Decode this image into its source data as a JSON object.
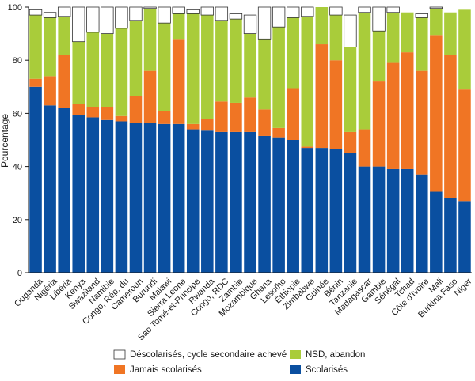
{
  "chart_data": {
    "type": "bar",
    "stacked": true,
    "ylabel": "Pourcentage",
    "ylim": [
      0,
      100
    ],
    "yticks": [
      0,
      20,
      40,
      60,
      80,
      100
    ],
    "legend_position": "bottom",
    "categories": [
      "Ouganda",
      "Nigéria",
      "Libéria",
      "Kenya",
      "Swaziland",
      "Namibie",
      "Congo, Rép. du",
      "Cameroun",
      "Burundi",
      "Malawi",
      "Sierra Leone",
      "Sao Tomé-et-Principe",
      "Rwanda",
      "Congo, RDC",
      "Zambie",
      "Mozambique",
      "Ghana",
      "Lesotho",
      "Éthiopie",
      "Zimbabwe",
      "Guinée",
      "Bénin",
      "Tanzanie",
      "Madagascar",
      "Gambie",
      "Sénégal",
      "Tchad",
      "Côte d'Ivoire",
      "Mali",
      "Burkina Faso",
      "Niger"
    ],
    "series": [
      {
        "name": "Scolarisés",
        "color": "#0a4fa0",
        "values": [
          70,
          63,
          62,
          59.5,
          58.5,
          57.5,
          57,
          56.5,
          56.5,
          56,
          56,
          54,
          53.5,
          53,
          53,
          53,
          51.5,
          51,
          50,
          47,
          47,
          46.5,
          45,
          40,
          40,
          39,
          39,
          37,
          30.5,
          28,
          27
        ]
      },
      {
        "name": "Jamais scolarisés",
        "color": "#f07524",
        "values": [
          3,
          11,
          20,
          4,
          4,
          5,
          2,
          10,
          19.5,
          5,
          32,
          2,
          4.5,
          11.5,
          11,
          13,
          10,
          3.5,
          19.5,
          0.5,
          39,
          33.5,
          8,
          14,
          32,
          40,
          44,
          39,
          59,
          54,
          42
        ]
      },
      {
        "name": "NSD, abandon",
        "color": "#a9cc3a",
        "values": [
          24,
          22,
          14.5,
          23.5,
          28,
          27.5,
          33,
          28.5,
          23.5,
          33,
          9.5,
          41.5,
          39,
          30.5,
          31.5,
          24,
          26.5,
          38,
          26.5,
          49,
          14,
          17,
          32,
          44,
          19,
          19,
          15,
          20,
          10,
          16,
          30
        ]
      },
      {
        "name": "Déscolarisés, cycle secondaire achevé",
        "color": "#ffffff",
        "values": [
          2,
          2,
          3.5,
          13,
          9.5,
          10,
          8,
          5,
          0.5,
          6,
          2.5,
          1.5,
          3,
          5,
          2,
          7,
          12,
          7.5,
          4,
          3.5,
          0,
          3,
          12,
          2,
          9,
          2,
          0,
          1.5,
          0.5,
          0,
          0
        ]
      }
    ],
    "legend": [
      {
        "label": "Déscolarisés, cycle secondaire achevé",
        "color": "#ffffff"
      },
      {
        "label": "NSD, abandon",
        "color": "#a9cc3a"
      },
      {
        "label": "Jamais scolarisés",
        "color": "#f07524"
      },
      {
        "label": "Scolarisés",
        "color": "#0a4fa0"
      }
    ]
  }
}
